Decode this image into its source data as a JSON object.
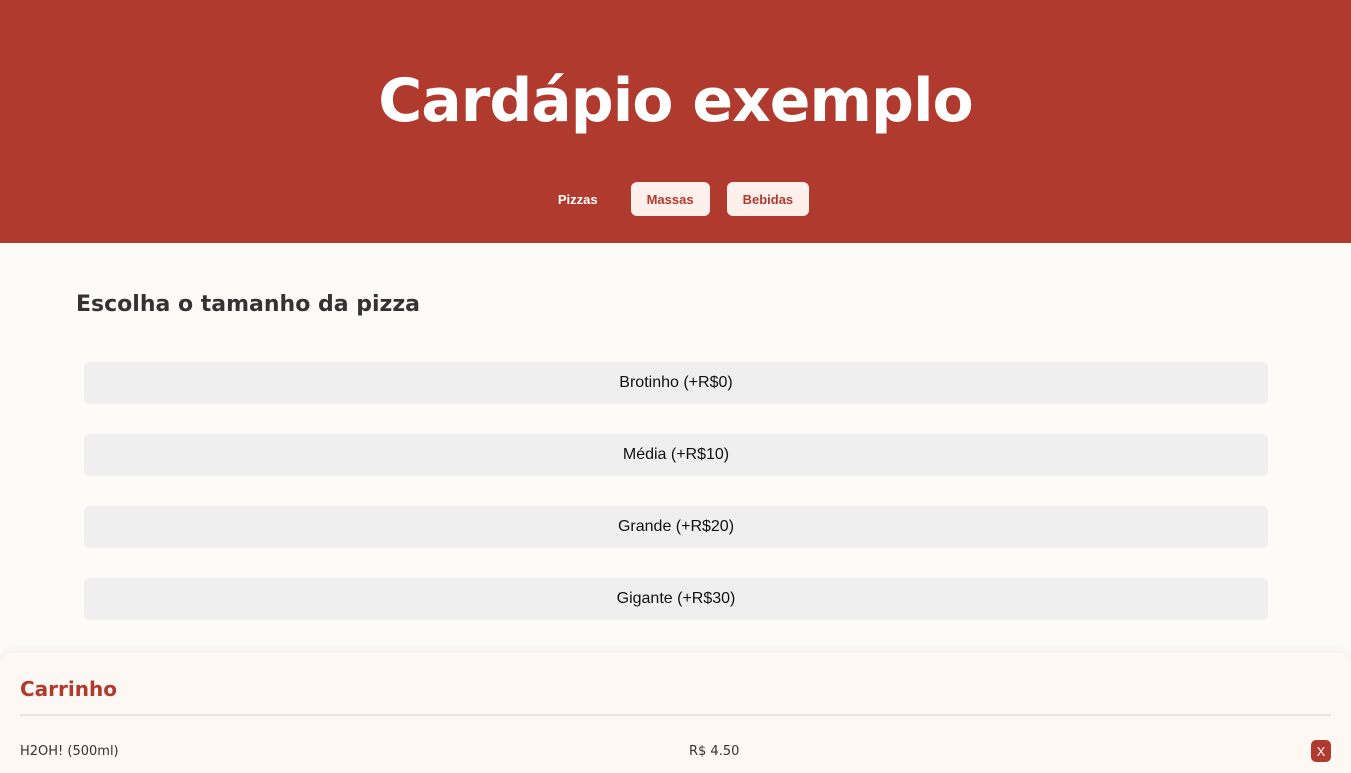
{
  "header": {
    "title": "Cardápio exemplo",
    "tabs": [
      {
        "label": "Pizzas",
        "active": true
      },
      {
        "label": "Massas"
      },
      {
        "label": "Bebidas"
      }
    ]
  },
  "main": {
    "heading": "Escolha o tamanho da pizza",
    "sizes": [
      "Brotinho (+R$0)",
      "Média (+R$10)",
      "Grande (+R$20)",
      "Gigante (+R$30)"
    ]
  },
  "cart": {
    "title": "Carrinho",
    "items": [
      {
        "name": "H2OH! (500ml)",
        "price": "R$ 4.50",
        "remove_label": "X"
      }
    ]
  },
  "colors": {
    "brand": "#b03a2e",
    "background": "#fdfbf7"
  }
}
